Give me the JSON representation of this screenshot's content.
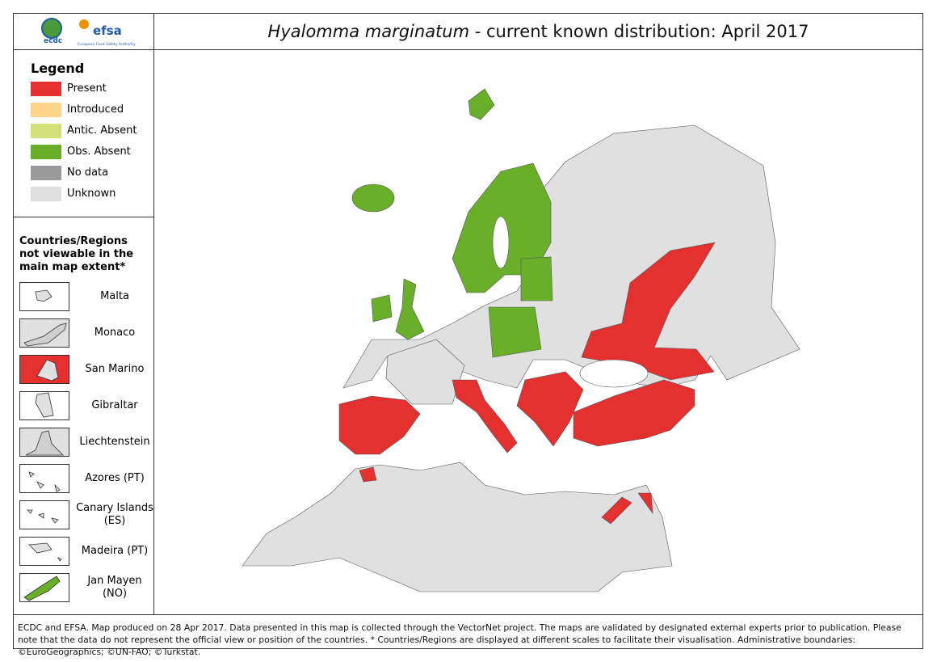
{
  "header": {
    "logos": {
      "ecdc": "ecdc",
      "efsa": "efsa",
      "efsa_subtitle": "European Food Safety Authority"
    },
    "title": {
      "species": "Hyalomma marginatum",
      "text": "- current known distribution: April 2017"
    }
  },
  "legend": {
    "title": "Legend",
    "items": [
      {
        "label": "Present",
        "color": "#e53030"
      },
      {
        "label": "Introduced",
        "color": "#fdd38a"
      },
      {
        "label": "Antic. Absent",
        "color": "#d4e07a"
      },
      {
        "label": "Obs. Absent",
        "color": "#6aaf2a"
      },
      {
        "label": "No data",
        "color": "#9a9a9a"
      },
      {
        "label": "Unknown",
        "color": "#e0e0e0"
      }
    ]
  },
  "insets": {
    "title": "Countries/Regions not viewable in the main map extent*",
    "items": [
      {
        "label": "Malta",
        "color": "#ffffff"
      },
      {
        "label": "Monaco",
        "color": "#e0e0e0"
      },
      {
        "label": "San Marino",
        "color": "#e53030"
      },
      {
        "label": "Gibraltar",
        "color": "#ffffff"
      },
      {
        "label": "Liechtenstein",
        "color": "#e0e0e0"
      },
      {
        "label": "Azores (PT)",
        "color": "#ffffff"
      },
      {
        "label": "Canary Islands (ES)",
        "color": "#ffffff"
      },
      {
        "label": "Madeira (PT)",
        "color": "#ffffff"
      },
      {
        "label": "Jan Mayen (NO)",
        "color": "#ffffff"
      }
    ]
  },
  "footer": {
    "text": "ECDC and EFSA. Map produced on 28 Apr 2017. Data presented in this map is collected through the VectorNet project. The maps are validated by designated external experts prior to publication. Please note that the data do not represent the official view or position of the countries. * Countries/Regions are displayed at different scales to facilitate their visualisation. Administrative boundaries: ©EuroGeographics; ©UN-FAO; ©Turkstat."
  }
}
